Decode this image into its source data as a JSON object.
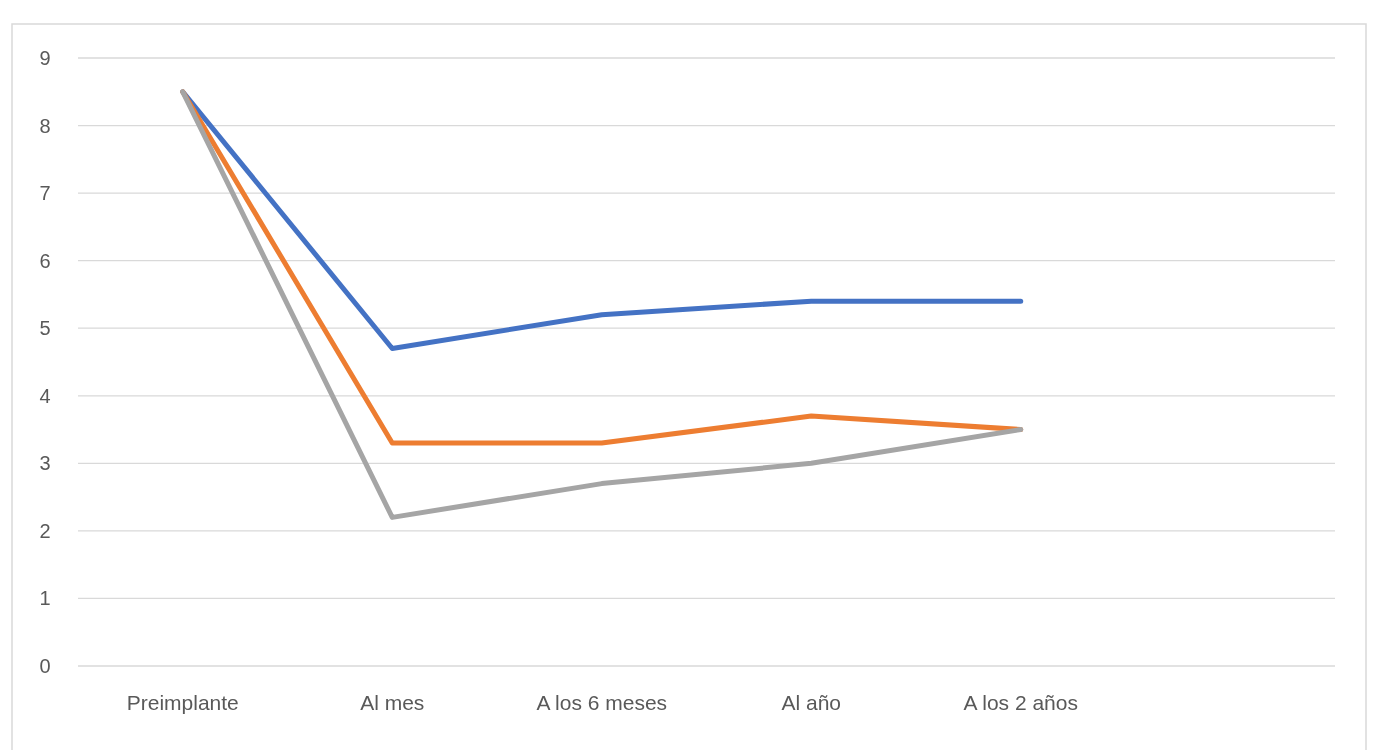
{
  "chart_data": {
    "type": "line",
    "categories": [
      "Preimplante",
      "Al mes",
      "A los 6 meses",
      "Al año",
      "A los 2 años",
      null
    ],
    "series": [
      {
        "color": "#4472c4",
        "values": [
          8.5,
          4.7,
          5.2,
          5.4,
          5.4,
          null
        ]
      },
      {
        "color": "#ed7d31",
        "values": [
          8.5,
          3.3,
          3.3,
          3.7,
          3.5,
          null
        ]
      },
      {
        "color": "#a5a5a5",
        "values": [
          8.5,
          2.2,
          2.7,
          3.0,
          3.5,
          null
        ]
      }
    ],
    "ylim": [
      0,
      9
    ],
    "yticks": [
      0,
      1,
      2,
      3,
      4,
      5,
      6,
      7,
      8,
      9
    ],
    "grid": "y",
    "marker": "none",
    "line_style": "solid"
  }
}
